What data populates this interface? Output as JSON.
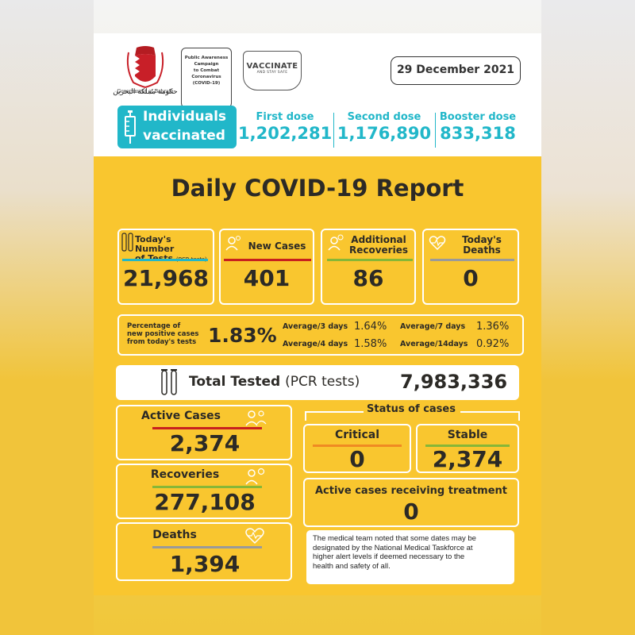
{
  "header": {
    "government_label": "Government of Bahrain",
    "campaign": [
      "Public Awareness",
      "Campaign",
      "to Combat",
      "Coronavirus",
      "(COVID-19)"
    ],
    "vaccinate_title": "VACCINATE",
    "vaccinate_sub": "AND STAY SAFE",
    "date": "29 December 2021"
  },
  "vaccination": {
    "label_line1": "Individuals",
    "label_line2": "vaccinated",
    "first_label": "First dose",
    "first_value": "1,202,281",
    "second_label": "Second dose",
    "second_value": "1,176,890",
    "booster_label": "Booster dose",
    "booster_value": "833,318"
  },
  "title": "Daily COVID-19 Report",
  "daily": {
    "tests_label1": "Today's Number",
    "tests_label2": "of Tests",
    "tests_pcr": "(PCR tests)",
    "tests_value": "21,968",
    "new_cases_label": "New Cases",
    "new_cases_value": "401",
    "recoveries_label1": "Additional",
    "recoveries_label2": "Recoveries",
    "recoveries_value": "86",
    "deaths_label1": "Today's",
    "deaths_label2": "Deaths",
    "deaths_value": "0"
  },
  "percentage": {
    "label1": "Percentage of",
    "label2": "new positive cases",
    "label3": "from today's tests",
    "value": "1.83%",
    "avg3_label": "Average/3 days",
    "avg3_value": "1.64%",
    "avg7_label": "Average/7 days",
    "avg7_value": "1.36%",
    "avg4_label": "Average/4 days",
    "avg4_value": "1.58%",
    "avg14_label": "Average/14days",
    "avg14_value": "0.92%"
  },
  "total": {
    "label": "Total Tested",
    "pcr": "(PCR tests)",
    "value": "7,983,336"
  },
  "cumulative": {
    "active_label": "Active Cases",
    "active_value": "2,374",
    "recoveries_label": "Recoveries",
    "recoveries_value": "277,108",
    "deaths_label": "Deaths",
    "deaths_value": "1,394"
  },
  "status": {
    "header": "Status of cases",
    "critical_label": "Critical",
    "critical_value": "0",
    "stable_label": "Stable",
    "stable_value": "2,374",
    "treatment_label": "Active cases receiving treatment",
    "treatment_value": "0"
  },
  "note": [
    "The medical team noted that some dates may be",
    "designated by the National Medical Taskforce at",
    "higher alert levels if deemed necessary to the",
    "health and safety of all."
  ],
  "colors": {
    "teal": "#21b7c9",
    "yellow": "#f9c62f",
    "red": "#c8201e",
    "green": "#86b737",
    "orange": "#f08a22",
    "grey": "#9a9a9a",
    "text": "#2c2a26"
  }
}
